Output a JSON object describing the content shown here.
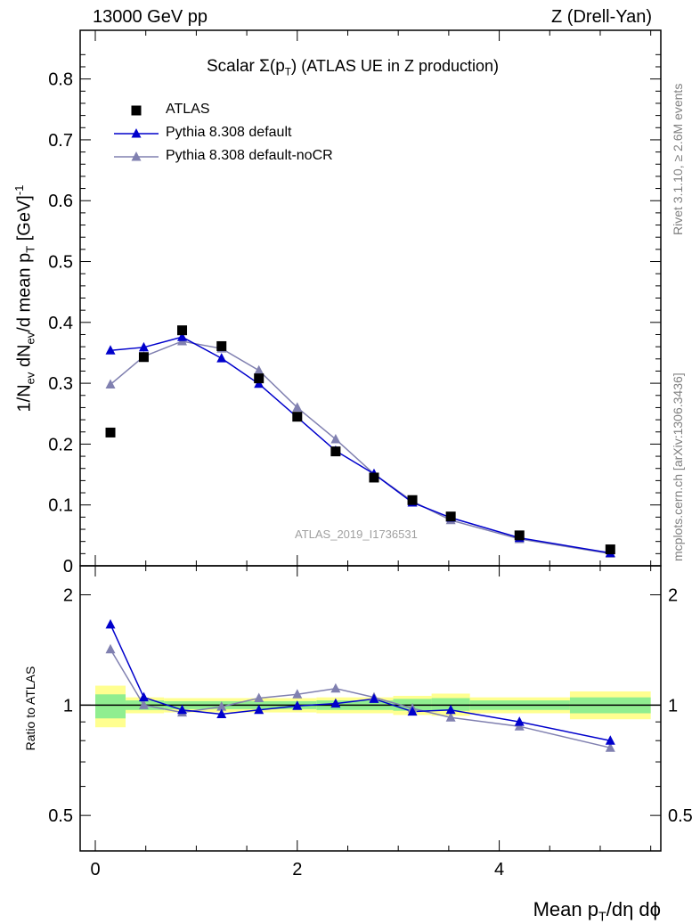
{
  "header": {
    "left": "13000 GeV pp",
    "right": "Z (Drell-Yan)"
  },
  "title": {
    "prefix": "Scalar ",
    "sigma": "Σ(p",
    "sub": "T",
    "close": ")",
    "suffix": " (ATLAS UE in Z production)"
  },
  "ylabel_main": {
    "a": "1/N",
    "a_sub": "ev",
    "b": " dN",
    "b_sub": "ev",
    "c": "/d mean p",
    "c_sub": "T",
    "d": " [GeV]",
    "d_sup": "-1"
  },
  "ylabel_ratio": "Ratio to ATLAS",
  "xlabel": {
    "a": "Mean p",
    "a_sub": "T",
    "b": "/dη dϕ"
  },
  "watermark": "ATLAS_2019_I1736531",
  "side_top": "Rivet 3.1.10, ≥ 2.6M events",
  "side_bottom": "mcplots.cern.ch [arXiv:1306.3436]",
  "colors": {
    "data": "#000000",
    "default": "#0000cc",
    "nocr": "#8080b0",
    "band_inner": "#90ee90",
    "band_outer": "#ffff90"
  },
  "chart_data": {
    "type": "scatter",
    "x": [
      0.15,
      0.48,
      0.86,
      1.25,
      1.62,
      2.0,
      2.38,
      2.76,
      3.14,
      3.52,
      4.2,
      5.1
    ],
    "xlim": [
      -0.15,
      5.6
    ],
    "xticks": [
      "0",
      "2",
      "4"
    ],
    "main": {
      "ylim": [
        0,
        0.88
      ],
      "yticks": [
        "0",
        "0.1",
        "0.2",
        "0.3",
        "0.4",
        "0.5",
        "0.6",
        "0.7",
        "0.8"
      ],
      "series": [
        {
          "name": "ATLAS",
          "marker": "square",
          "values": [
            0.219,
            0.343,
            0.387,
            0.361,
            0.308,
            0.245,
            0.188,
            0.145,
            0.108,
            0.081,
            0.05,
            0.027
          ]
        },
        {
          "name": "Pythia 8.308 default",
          "marker": "triangle",
          "values": [
            0.354,
            0.359,
            0.376,
            0.341,
            0.299,
            0.244,
            0.189,
            0.151,
            0.104,
            0.079,
            0.046,
            0.021
          ]
        },
        {
          "name": "Pythia 8.308 default-noCR",
          "marker": "triangle",
          "values": [
            0.298,
            0.344,
            0.369,
            0.357,
            0.321,
            0.26,
            0.208,
            0.151,
            0.106,
            0.075,
            0.044,
            0.02
          ]
        }
      ]
    },
    "ratio": {
      "ylim": [
        0.4,
        2.4
      ],
      "log": true,
      "yticks": [
        "0.5",
        "1",
        "2"
      ],
      "series": [
        {
          "name": "Pythia 8.308 default",
          "values": [
            1.66,
            1.05,
            0.97,
            0.945,
            0.97,
            0.995,
            1.01,
            1.04,
            0.96,
            0.97,
            0.9,
            0.8
          ]
        },
        {
          "name": "Pythia 8.308 default-noCR",
          "values": [
            1.42,
            1.0,
            0.955,
            0.99,
            1.045,
            1.07,
            1.11,
            1.05,
            0.98,
            0.925,
            0.875,
            0.765
          ]
        }
      ],
      "bands": [
        {
          "x0": 0.0,
          "x1": 0.3,
          "inner": [
            0.92,
            1.07
          ],
          "outer": [
            0.87,
            1.13
          ]
        },
        {
          "x0": 0.3,
          "x1": 0.68,
          "inner": [
            0.97,
            1.03
          ],
          "outer": [
            0.95,
            1.05
          ]
        },
        {
          "x0": 0.68,
          "x1": 2.19,
          "inner": [
            0.975,
            1.025
          ],
          "outer": [
            0.955,
            1.045
          ]
        },
        {
          "x0": 2.19,
          "x1": 2.95,
          "inner": [
            0.97,
            1.03
          ],
          "outer": [
            0.95,
            1.05
          ]
        },
        {
          "x0": 2.95,
          "x1": 3.33,
          "inner": [
            0.965,
            1.04
          ],
          "outer": [
            0.94,
            1.06
          ]
        },
        {
          "x0": 3.33,
          "x1": 3.71,
          "inner": [
            0.965,
            1.045
          ],
          "outer": [
            0.935,
            1.075
          ]
        },
        {
          "x0": 3.71,
          "x1": 4.7,
          "inner": [
            0.97,
            1.03
          ],
          "outer": [
            0.95,
            1.05
          ]
        },
        {
          "x0": 4.7,
          "x1": 5.5,
          "inner": [
            0.95,
            1.05
          ],
          "outer": [
            0.915,
            1.09
          ]
        }
      ]
    }
  }
}
